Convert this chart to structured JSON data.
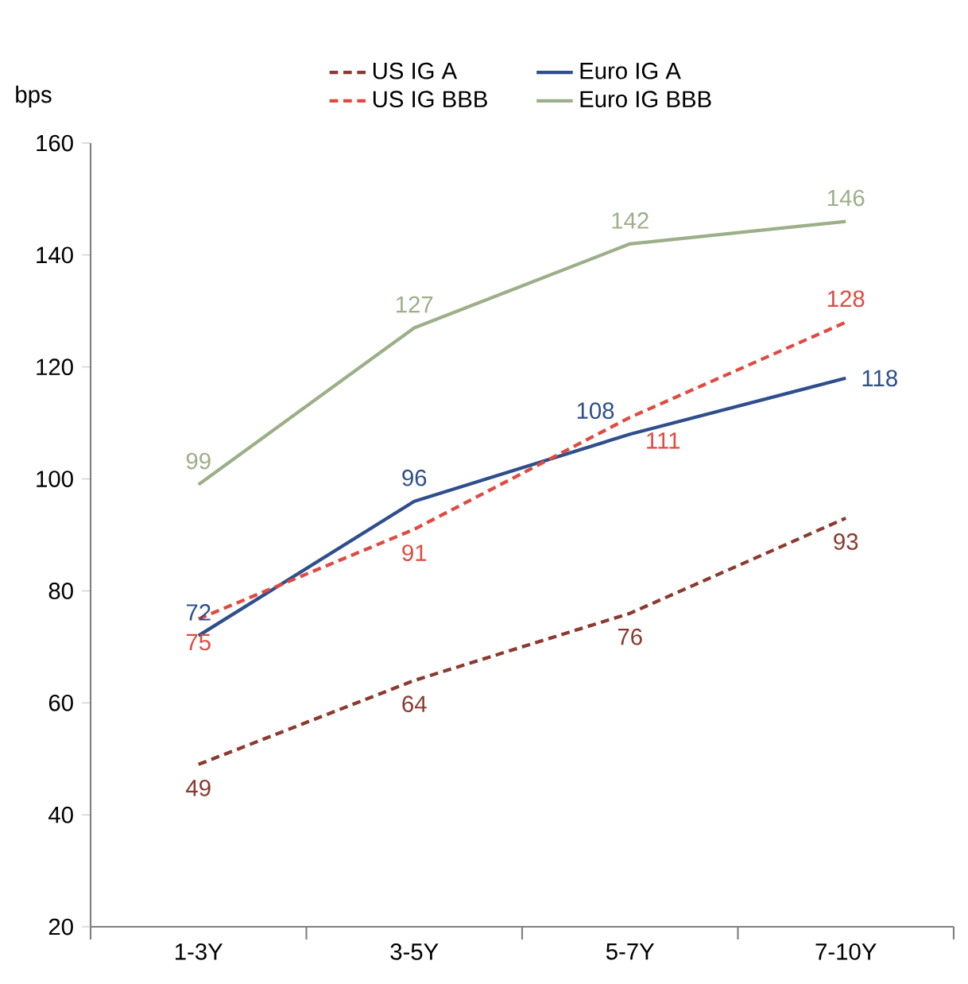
{
  "chart_data": {
    "type": "line",
    "ylabel": "bps",
    "categories": [
      "1-3Y",
      "3-5Y",
      "5-7Y",
      "7-10Y"
    ],
    "series": [
      {
        "name": "US IG A",
        "color": "#8b3a2f",
        "line_style": "dashed",
        "values": [
          49,
          64,
          76,
          93
        ]
      },
      {
        "name": "Euro IG A",
        "color": "#2e4e8c",
        "line_style": "solid",
        "values": [
          72,
          96,
          108,
          118
        ]
      },
      {
        "name": "US IG BBB",
        "color": "#e04a40",
        "line_style": "dashed",
        "values": [
          75,
          91,
          111,
          128
        ]
      },
      {
        "name": "Euro IG BBB",
        "color": "#9caf88",
        "line_style": "solid",
        "values": [
          99,
          127,
          142,
          146
        ]
      }
    ],
    "ylim": [
      20,
      160
    ],
    "yticks": [
      20,
      40,
      60,
      80,
      100,
      120,
      140,
      160
    ],
    "data_labels": true,
    "legend": "top",
    "grid": false,
    "marker": "none"
  }
}
